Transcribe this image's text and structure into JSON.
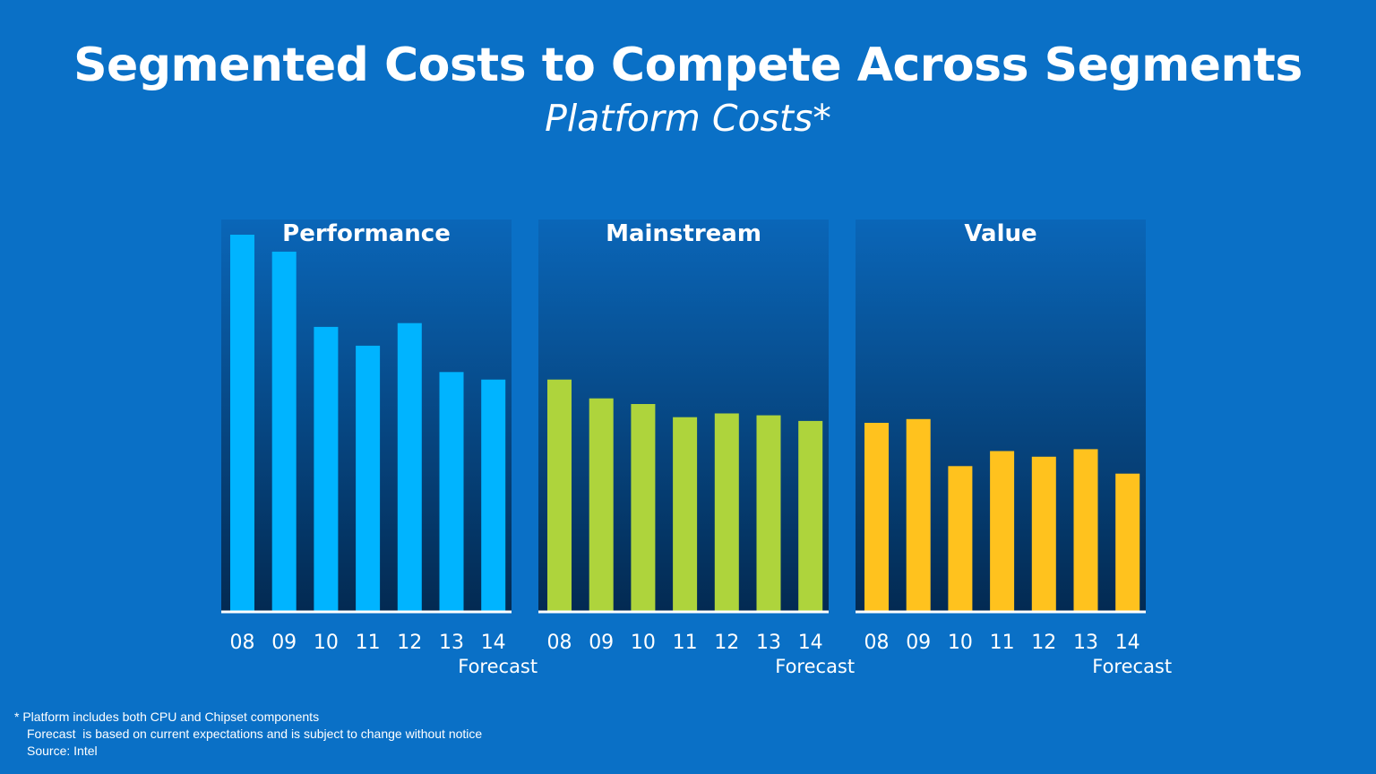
{
  "title": "Segmented Costs to Compete Across Segments",
  "subtitle": "Platform Costs*",
  "footnotes": {
    "marker": "*",
    "line1": "Platform includes both CPU and Chipset components",
    "line2": "Forecast  is based on current expectations and is subject to change without notice",
    "line3": "Source: Intel"
  },
  "colors": {
    "background": "#0a70c6",
    "panel_top": "#0a66b8",
    "panel_bottom": "#032a52",
    "performance": "#00b4ff",
    "mainstream": "#aed43c",
    "value": "#ffc21e"
  },
  "chart_data": [
    {
      "type": "bar",
      "title": "Performance",
      "categories": [
        "08",
        "09",
        "10",
        "11",
        "12",
        "13",
        "14"
      ],
      "forecast_label": "Forecast",
      "values": [
        100,
        95.5,
        75.5,
        70.5,
        76.5,
        63.5,
        61.5
      ],
      "ylim": [
        0,
        100
      ],
      "color": "#00b4ff"
    },
    {
      "type": "bar",
      "title": "Mainstream",
      "categories": [
        "08",
        "09",
        "10",
        "11",
        "12",
        "13",
        "14"
      ],
      "forecast_label": "Forecast",
      "values": [
        61.5,
        56.5,
        55,
        51.5,
        52.5,
        52,
        50.5
      ],
      "ylim": [
        0,
        100
      ],
      "color": "#aed43c"
    },
    {
      "type": "bar",
      "title": "Value",
      "categories": [
        "08",
        "09",
        "10",
        "11",
        "12",
        "13",
        "14"
      ],
      "forecast_label": "Forecast",
      "values": [
        50,
        51,
        38.5,
        42.5,
        41,
        43,
        36.5
      ],
      "ylim": [
        0,
        100
      ],
      "color": "#ffc21e"
    }
  ]
}
